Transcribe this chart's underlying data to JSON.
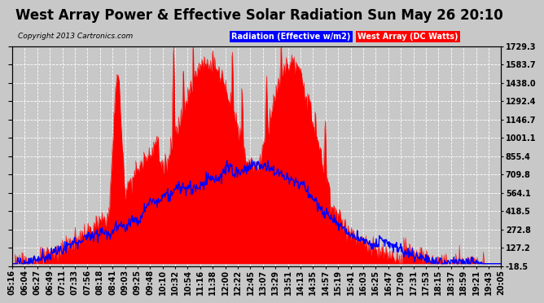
{
  "title": "West Array Power & Effective Solar Radiation Sun May 26 20:10",
  "copyright": "Copyright 2013 Cartronics.com",
  "legend_radiation": "Radiation (Effective w/m2)",
  "legend_west": "West Array (DC Watts)",
  "ylabel_right_ticks": [
    1729.3,
    1583.7,
    1438.0,
    1292.4,
    1146.7,
    1001.1,
    855.4,
    709.8,
    564.1,
    418.5,
    272.8,
    127.2,
    -18.5
  ],
  "ymin": -18.5,
  "ymax": 1729.3,
  "background_color": "#c8c8c8",
  "plot_bg_color": "#c8c8c8",
  "grid_color": "#ffffff",
  "fill_color": "#ff0000",
  "line_color_radiation": "#0000ff",
  "title_fontsize": 12,
  "tick_fontsize": 7,
  "x_tick_labels": [
    "05:16",
    "06:04",
    "06:27",
    "06:49",
    "07:11",
    "07:33",
    "07:56",
    "08:18",
    "08:41",
    "09:03",
    "09:25",
    "09:48",
    "10:10",
    "10:32",
    "10:54",
    "11:16",
    "11:38",
    "12:00",
    "12:22",
    "12:45",
    "13:07",
    "13:29",
    "13:51",
    "14:13",
    "14:35",
    "14:57",
    "15:19",
    "15:41",
    "16:03",
    "16:25",
    "16:47",
    "17:09",
    "17:31",
    "17:53",
    "18:15",
    "18:37",
    "18:59",
    "19:21",
    "19:43",
    "20:05"
  ]
}
